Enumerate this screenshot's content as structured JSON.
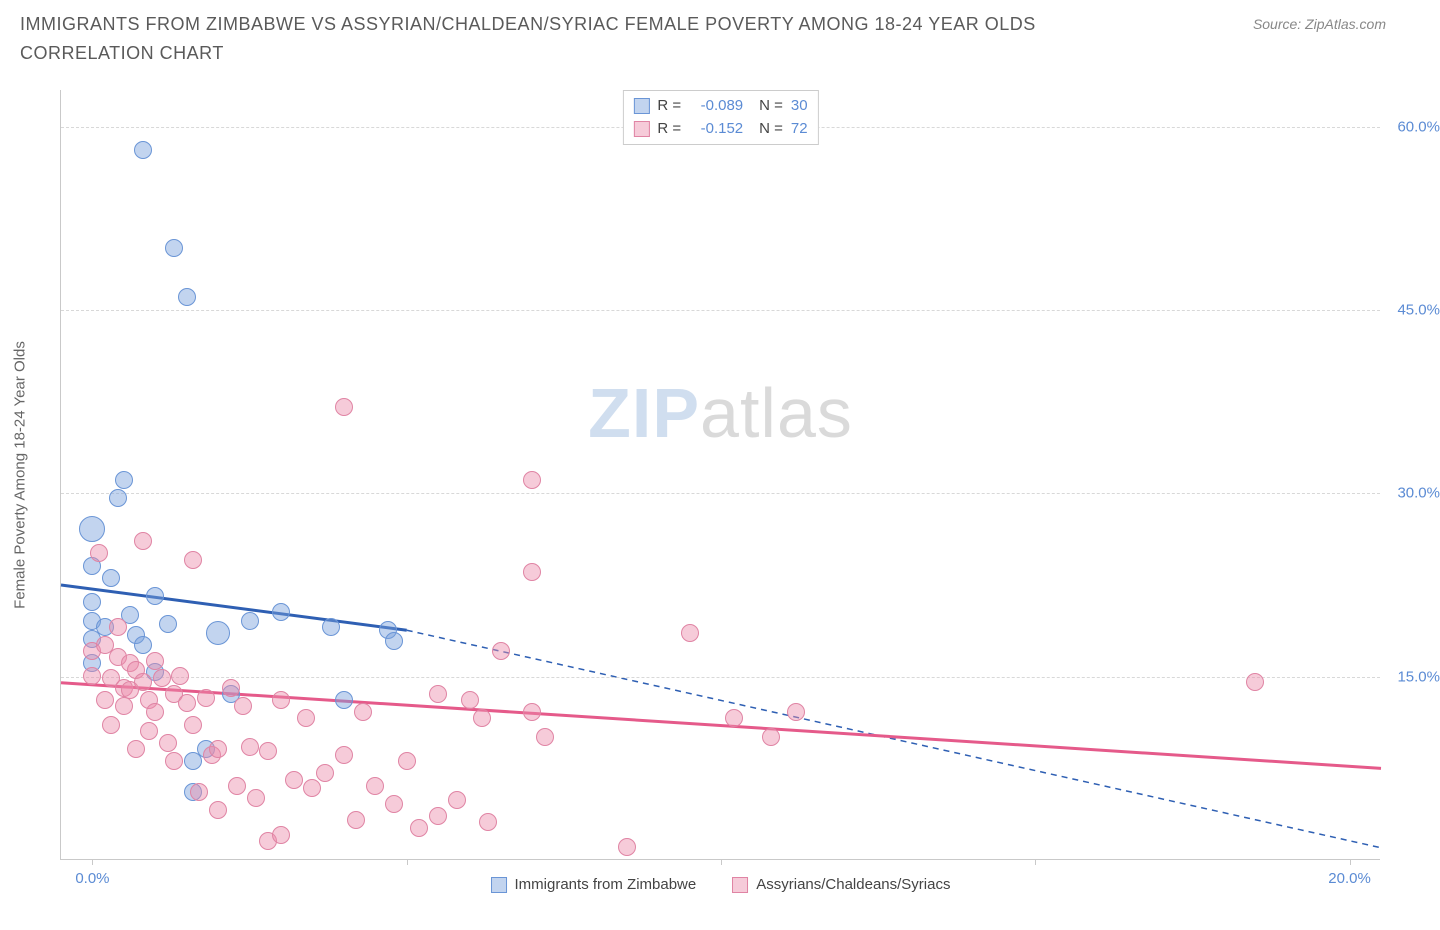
{
  "title": "IMMIGRANTS FROM ZIMBABWE VS ASSYRIAN/CHALDEAN/SYRIAC FEMALE POVERTY AMONG 18-24 YEAR OLDS CORRELATION CHART",
  "source": "Source: ZipAtlas.com",
  "watermark": {
    "part1": "ZIP",
    "part2": "atlas"
  },
  "ylabel": "Female Poverty Among 18-24 Year Olds",
  "chart": {
    "type": "scatter",
    "background_color": "#ffffff",
    "grid_color": "#d8d8d8",
    "axis_color": "#c9c9c9",
    "tick_label_color": "#5b8bd4",
    "text_color": "#666666",
    "title_color": "#5a5a5a",
    "title_fontsize": 18,
    "label_fontsize": 15,
    "tick_fontsize": 15,
    "xlim": [
      -0.5,
      20.5
    ],
    "ylim": [
      0,
      63
    ],
    "x_ticks": [
      0,
      5,
      10,
      15,
      20
    ],
    "x_tick_labels": [
      "0.0%",
      "",
      "",
      "",
      "20.0%"
    ],
    "y_gridlines": [
      15,
      30,
      45,
      60
    ],
    "y_tick_labels": [
      "15.0%",
      "30.0%",
      "45.0%",
      "60.0%"
    ],
    "point_radius": 9,
    "point_opacity": 0.55,
    "trend_line_width": 3,
    "series": [
      {
        "id": "zimbabwe",
        "label": "Immigrants from Zimbabwe",
        "fill": "rgba(120,160,220,0.45)",
        "stroke": "#6a95d6",
        "line_color": "#2e5fb3",
        "R": "-0.089",
        "N": "30",
        "trend": {
          "x1": -0.5,
          "y1": 22.5,
          "x2": 5.0,
          "y2": 18.8,
          "dash_to_x": 20.5,
          "dash_to_y": 1.0
        },
        "points": [
          {
            "x": 0.0,
            "y": 27.0,
            "r": 13
          },
          {
            "x": 0.0,
            "y": 24.0
          },
          {
            "x": 0.0,
            "y": 21.0
          },
          {
            "x": 0.0,
            "y": 19.5
          },
          {
            "x": 0.0,
            "y": 18.0
          },
          {
            "x": 0.0,
            "y": 16.0
          },
          {
            "x": 0.2,
            "y": 19.0
          },
          {
            "x": 0.3,
            "y": 23.0
          },
          {
            "x": 0.4,
            "y": 29.5
          },
          {
            "x": 0.5,
            "y": 31.0
          },
          {
            "x": 0.6,
            "y": 20.0
          },
          {
            "x": 0.7,
            "y": 18.3
          },
          {
            "x": 0.8,
            "y": 17.5
          },
          {
            "x": 0.8,
            "y": 58.0
          },
          {
            "x": 1.0,
            "y": 21.5
          },
          {
            "x": 1.0,
            "y": 15.3
          },
          {
            "x": 1.2,
            "y": 19.2
          },
          {
            "x": 1.3,
            "y": 50.0
          },
          {
            "x": 1.5,
            "y": 46.0
          },
          {
            "x": 1.6,
            "y": 8.0
          },
          {
            "x": 1.6,
            "y": 5.5
          },
          {
            "x": 1.8,
            "y": 9.0
          },
          {
            "x": 2.0,
            "y": 18.5,
            "r": 12
          },
          {
            "x": 2.2,
            "y": 13.5
          },
          {
            "x": 2.5,
            "y": 19.5
          },
          {
            "x": 3.0,
            "y": 20.2
          },
          {
            "x": 3.8,
            "y": 19.0
          },
          {
            "x": 4.0,
            "y": 13.0
          },
          {
            "x": 4.7,
            "y": 18.7
          },
          {
            "x": 4.8,
            "y": 17.8
          }
        ]
      },
      {
        "id": "assyrian",
        "label": "Assyrians/Chaldeans/Syriacs",
        "fill": "rgba(235,140,170,0.45)",
        "stroke": "#e084a4",
        "line_color": "#e55a8a",
        "R": "-0.152",
        "N": "72",
        "trend": {
          "x1": -0.5,
          "y1": 14.5,
          "x2": 20.5,
          "y2": 7.5
        },
        "points": [
          {
            "x": 0.0,
            "y": 17.0
          },
          {
            "x": 0.0,
            "y": 15.0
          },
          {
            "x": 0.1,
            "y": 25.0
          },
          {
            "x": 0.2,
            "y": 17.5
          },
          {
            "x": 0.2,
            "y": 13.0
          },
          {
            "x": 0.3,
            "y": 14.8
          },
          {
            "x": 0.3,
            "y": 11.0
          },
          {
            "x": 0.4,
            "y": 19.0
          },
          {
            "x": 0.4,
            "y": 16.5
          },
          {
            "x": 0.5,
            "y": 14.0
          },
          {
            "x": 0.5,
            "y": 12.5
          },
          {
            "x": 0.6,
            "y": 16.0
          },
          {
            "x": 0.6,
            "y": 13.8
          },
          {
            "x": 0.7,
            "y": 15.5
          },
          {
            "x": 0.7,
            "y": 9.0
          },
          {
            "x": 0.8,
            "y": 26.0
          },
          {
            "x": 0.8,
            "y": 14.5
          },
          {
            "x": 0.9,
            "y": 13.0
          },
          {
            "x": 0.9,
            "y": 10.5
          },
          {
            "x": 1.0,
            "y": 16.2
          },
          {
            "x": 1.0,
            "y": 12.0
          },
          {
            "x": 1.1,
            "y": 14.8
          },
          {
            "x": 1.2,
            "y": 9.5
          },
          {
            "x": 1.3,
            "y": 13.5
          },
          {
            "x": 1.3,
            "y": 8.0
          },
          {
            "x": 1.4,
            "y": 15.0
          },
          {
            "x": 1.5,
            "y": 12.8
          },
          {
            "x": 1.6,
            "y": 24.5
          },
          {
            "x": 1.6,
            "y": 11.0
          },
          {
            "x": 1.7,
            "y": 5.5
          },
          {
            "x": 1.8,
            "y": 13.2
          },
          {
            "x": 1.9,
            "y": 8.5
          },
          {
            "x": 2.0,
            "y": 9.0
          },
          {
            "x": 2.0,
            "y": 4.0
          },
          {
            "x": 2.2,
            "y": 14.0
          },
          {
            "x": 2.3,
            "y": 6.0
          },
          {
            "x": 2.4,
            "y": 12.5
          },
          {
            "x": 2.5,
            "y": 9.2
          },
          {
            "x": 2.6,
            "y": 5.0
          },
          {
            "x": 2.8,
            "y": 8.8
          },
          {
            "x": 2.8,
            "y": 1.5
          },
          {
            "x": 3.0,
            "y": 13.0
          },
          {
            "x": 3.2,
            "y": 6.5
          },
          {
            "x": 3.4,
            "y": 11.5
          },
          {
            "x": 3.5,
            "y": 5.8
          },
          {
            "x": 3.7,
            "y": 7.0
          },
          {
            "x": 4.0,
            "y": 37.0
          },
          {
            "x": 4.0,
            "y": 8.5
          },
          {
            "x": 4.3,
            "y": 12.0
          },
          {
            "x": 4.5,
            "y": 6.0
          },
          {
            "x": 4.8,
            "y": 4.5
          },
          {
            "x": 5.0,
            "y": 8.0
          },
          {
            "x": 5.2,
            "y": 2.5
          },
          {
            "x": 5.5,
            "y": 13.5
          },
          {
            "x": 5.5,
            "y": 3.5
          },
          {
            "x": 5.8,
            "y": 4.8
          },
          {
            "x": 6.0,
            "y": 13.0
          },
          {
            "x": 6.2,
            "y": 11.5
          },
          {
            "x": 6.3,
            "y": 3.0
          },
          {
            "x": 6.5,
            "y": 17.0
          },
          {
            "x": 7.0,
            "y": 31.0
          },
          {
            "x": 7.0,
            "y": 23.5
          },
          {
            "x": 7.0,
            "y": 12.0
          },
          {
            "x": 7.2,
            "y": 10.0
          },
          {
            "x": 8.5,
            "y": 1.0
          },
          {
            "x": 9.5,
            "y": 18.5
          },
          {
            "x": 10.2,
            "y": 11.5
          },
          {
            "x": 10.8,
            "y": 10.0
          },
          {
            "x": 11.2,
            "y": 12.0
          },
          {
            "x": 18.5,
            "y": 14.5
          },
          {
            "x": 3.0,
            "y": 2.0
          },
          {
            "x": 4.2,
            "y": 3.2
          }
        ]
      }
    ]
  }
}
